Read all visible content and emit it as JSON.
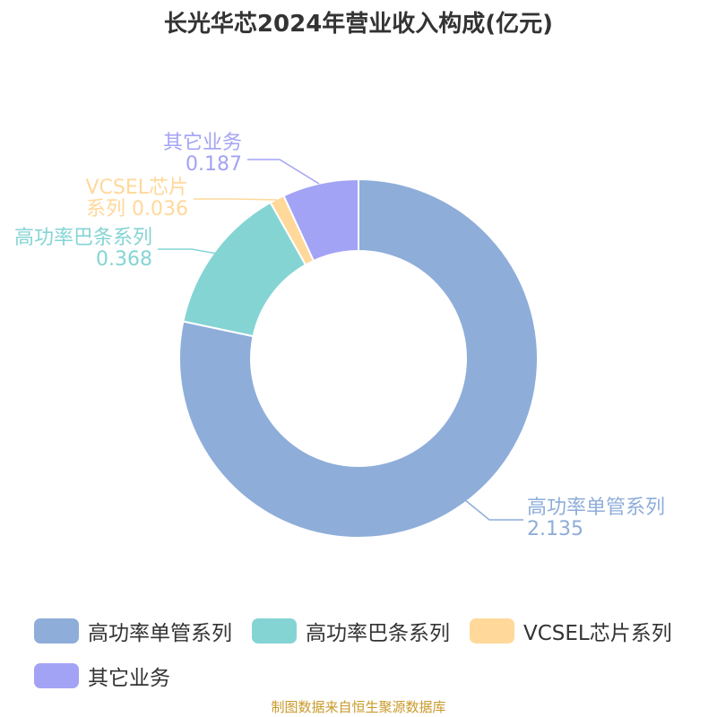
{
  "header": {
    "title": "长光华芯2024年营业收入构成(亿元)"
  },
  "chart_data": {
    "type": "pie",
    "title": "长光华芯2024年营业收入构成(亿元)",
    "variant": "donut",
    "slices": [
      {
        "name": "高功率单管系列",
        "value": 2.135,
        "color": "#8eadd9"
      },
      {
        "name": "高功率巴条系列",
        "value": 0.368,
        "color": "#85d4d4"
      },
      {
        "name": "VCSEL芯片系列",
        "value": 0.036,
        "color": "#ffd89a"
      },
      {
        "name": "其它业务",
        "value": 0.187,
        "color": "#a3a3f5"
      }
    ],
    "callouts": [
      {
        "lines": [
          "高功率单管系列",
          "2.135"
        ]
      },
      {
        "lines": [
          "高功率巴条系列",
          "0.368"
        ]
      },
      {
        "lines": [
          "VCSEL芯片",
          "系列 0.036"
        ]
      },
      {
        "lines": [
          "其它业务",
          "0.187"
        ]
      }
    ],
    "legend_position": "bottom"
  },
  "legend": {
    "items": [
      {
        "label": "高功率单管系列",
        "color": "#8eadd9"
      },
      {
        "label": "高功率巴条系列",
        "color": "#85d4d4"
      },
      {
        "label": "VCSEL芯片系列",
        "color": "#ffd89a"
      },
      {
        "label": "其它业务",
        "color": "#a3a3f5"
      }
    ]
  },
  "footer": {
    "source": "制图数据来自恒生聚源数据库"
  }
}
